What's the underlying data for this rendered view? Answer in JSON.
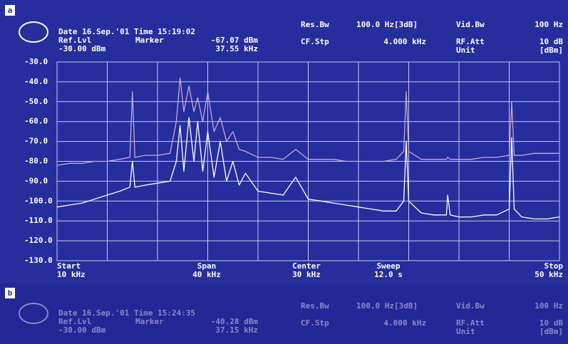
{
  "panels": {
    "a": {
      "label": "a",
      "header": {
        "date": "Date 16.Sep.'01  Time 15:19:02",
        "ref_lvl": "Ref.Lvl",
        "ref_value": "-30.00 dBm",
        "marker": "Marker",
        "marker_level": "-67.07 dBm",
        "marker_freq": "37.55 kHz",
        "res_bw": "Res.Bw",
        "res_bw_value": "100.0 Hz[3dB]",
        "vid_bw": "Vid.Bw",
        "vid_bw_value": "100 Hz",
        "cf_stp": "CF.Stp",
        "cf_stp_value": "4.000 kHz",
        "rf_att": "RF.Att",
        "rf_att_value": "10 dB",
        "unit": "Unit",
        "unit_value": "[dBm]"
      }
    },
    "b": {
      "label": "b",
      "header": {
        "date": "Date 16.Sep.'01  Time 15:24:35",
        "ref_lvl": "Ref.Lvl",
        "ref_value": "-30.00 dBm",
        "marker": "Marker",
        "marker_level": "-40.28 dBm",
        "marker_freq": "37.15 kHz",
        "res_bw": "Res.Bw",
        "res_bw_value": "100.0 Hz[3dB]",
        "vid_bw": "Vid.Bw",
        "vid_bw_value": "100 Hz",
        "cf_stp": "CF.Stp",
        "cf_stp_value": "4.000 kHz",
        "rf_att": "RF.Att",
        "rf_att_value": "10 dB",
        "unit": "Unit",
        "unit_value": "[dBm]"
      }
    }
  },
  "chart_data": {
    "type": "line",
    "x": [
      10,
      11,
      12,
      13,
      14,
      15,
      15.8,
      16,
      16.2,
      17,
      18,
      19,
      19.5,
      19.8,
      20.1,
      20.5,
      20.9,
      21.2,
      21.6,
      22,
      22.5,
      23,
      23.5,
      24,
      24.5,
      25,
      26,
      27,
      28,
      29,
      30,
      31,
      32,
      33,
      34,
      35,
      36,
      37,
      37.6,
      37.8,
      38,
      39,
      40,
      41,
      41.1,
      41.3,
      42,
      43,
      44,
      45,
      46,
      46.2,
      46.4,
      47,
      48,
      49,
      50
    ],
    "series": [
      {
        "color": "#c9a7d6",
        "values": [
          -82,
          -81,
          -81,
          -80,
          -80,
          -79,
          -78,
          -45,
          -78,
          -77,
          -77,
          -76,
          -60,
          -38,
          -55,
          -42,
          -55,
          -48,
          -60,
          -45,
          -65,
          -58,
          -70,
          -65,
          -74,
          -75,
          -78,
          -78,
          -79,
          -74,
          -79,
          -79,
          -79,
          -80,
          -80,
          -80,
          -80,
          -79,
          -75,
          -45,
          -75,
          -79,
          -79,
          -79,
          -78,
          -79,
          -79,
          -79,
          -78,
          -78,
          -77,
          -50,
          -77,
          -77,
          -76,
          -76,
          -76
        ]
      },
      {
        "color": "#ffffff",
        "values": [
          -103,
          -102,
          -101,
          -99,
          -97,
          -95,
          -93,
          -80,
          -93,
          -92,
          -91,
          -90,
          -80,
          -62,
          -85,
          -58,
          -80,
          -60,
          -85,
          -65,
          -88,
          -70,
          -90,
          -80,
          -92,
          -86,
          -95,
          -96,
          -97,
          -88,
          -99,
          -100,
          -101,
          -102,
          -103,
          -104,
          -105,
          -105,
          -100,
          -70,
          -100,
          -106,
          -107,
          -107,
          -97,
          -107,
          -108,
          -108,
          -107,
          -107,
          -104,
          -68,
          -104,
          -108,
          -109,
          -109,
          -108
        ]
      }
    ],
    "xlim": [
      10,
      50
    ],
    "ylim": [
      -130,
      -30
    ],
    "yticks": [
      {
        "value": -30,
        "label": "-30.0"
      },
      {
        "value": -40,
        "label": "-40.0"
      },
      {
        "value": -50,
        "label": "-50.0"
      },
      {
        "value": -60,
        "label": "-60.0"
      },
      {
        "value": -70,
        "label": "-70.0"
      },
      {
        "value": -80,
        "label": "-80.0"
      },
      {
        "value": -90,
        "label": "-90.0"
      },
      {
        "value": -100,
        "label": "-100.0"
      },
      {
        "value": -110,
        "label": "-110.0"
      },
      {
        "value": -120,
        "label": "-120.0"
      },
      {
        "value": -130,
        "label": "-130.0"
      }
    ],
    "grid": true,
    "x_annotations": [
      {
        "name": "Start",
        "value": "10 kHz"
      },
      {
        "name": "Span",
        "value": "40 kHz"
      },
      {
        "name": "Center",
        "value": "30 kHz"
      },
      {
        "name": "Sweep",
        "value": "12.0 s"
      },
      {
        "name": "Stop",
        "value": "50 kHz"
      }
    ]
  }
}
